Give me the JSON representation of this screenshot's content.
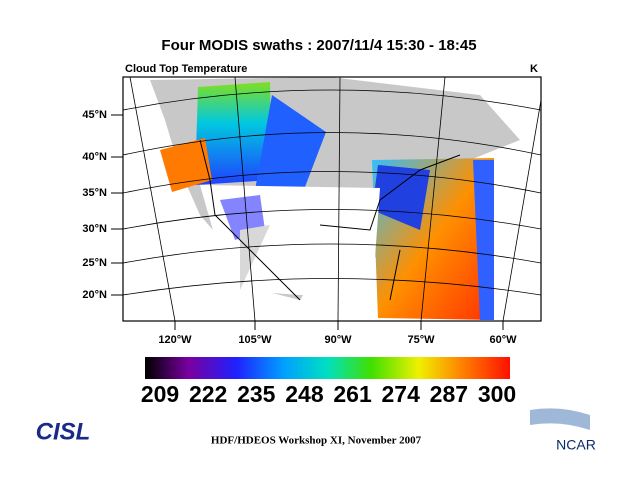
{
  "header": {
    "title": "Four MODIS swaths : 2007/11/4  15:30 - 18:45"
  },
  "map": {
    "subtitle": "Cloud Top Temperature",
    "units": "K",
    "lat_labels": [
      "45°N",
      "40°N",
      "35°N",
      "30°N",
      "25°N",
      "20°N"
    ],
    "lon_labels": [
      "120°W",
      "105°W",
      "90°W",
      "75°W",
      "60°W"
    ]
  },
  "colorbar": {
    "labels": [
      209,
      222,
      235,
      248,
      261,
      274,
      287,
      300
    ]
  },
  "footer": {
    "text": "HDF/HDEOS Workshop XI, November 2007"
  },
  "logos": {
    "cisl": "CISL",
    "ncar": "NCAR"
  }
}
